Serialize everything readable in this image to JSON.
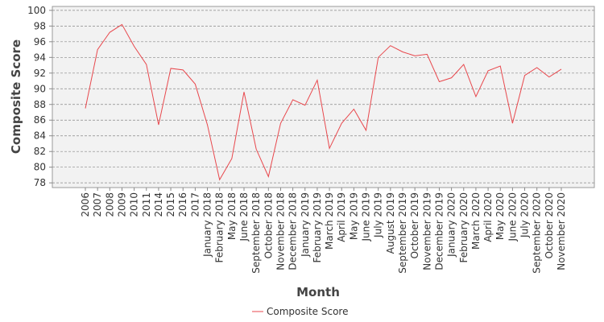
{
  "chart_data": {
    "type": "line",
    "x_label": "Month",
    "y_label": "Composite Score",
    "categories": [
      "2006",
      "2007",
      "2008",
      "2009",
      "2010",
      "2011",
      "2014",
      "2015",
      "2016",
      "2017",
      "January 2018",
      "February 2018",
      "May 2018",
      "June 2018",
      "September 2018",
      "October 2018",
      "November 2018",
      "December 2018",
      "January 2019",
      "February 2019",
      "March 2019",
      "April 2019",
      "May 2019",
      "June 2019",
      "July 2019",
      "August 2019",
      "September 2019",
      "October 2019",
      "November 2019",
      "December 2019",
      "January 2020",
      "February 2020",
      "March 2020",
      "April 2020",
      "May 2020",
      "June 2020",
      "July 2020",
      "September 2020",
      "October 2020",
      "November 2020"
    ],
    "series": [
      {
        "name": "Composite Score",
        "color": "#e8474c",
        "values": [
          87.5,
          95.0,
          97.2,
          98.2,
          95.4,
          93.1,
          85.4,
          92.6,
          92.4,
          90.6,
          85.4,
          78.4,
          81.1,
          89.6,
          82.3,
          78.8,
          85.6,
          88.6,
          87.9,
          91.1,
          82.4,
          85.6,
          87.4,
          84.7,
          94.0,
          95.5,
          94.7,
          94.2,
          94.4,
          90.9,
          91.4,
          93.1,
          89.0,
          92.3,
          92.9,
          85.6,
          91.7,
          92.7,
          91.5,
          92.5
        ]
      }
    ],
    "ylim": [
      77.4,
      100.5
    ],
    "yticks": [
      78,
      80,
      82,
      84,
      86,
      88,
      90,
      92,
      94,
      96,
      98,
      100
    ],
    "grid": true,
    "legend": "bottom"
  }
}
